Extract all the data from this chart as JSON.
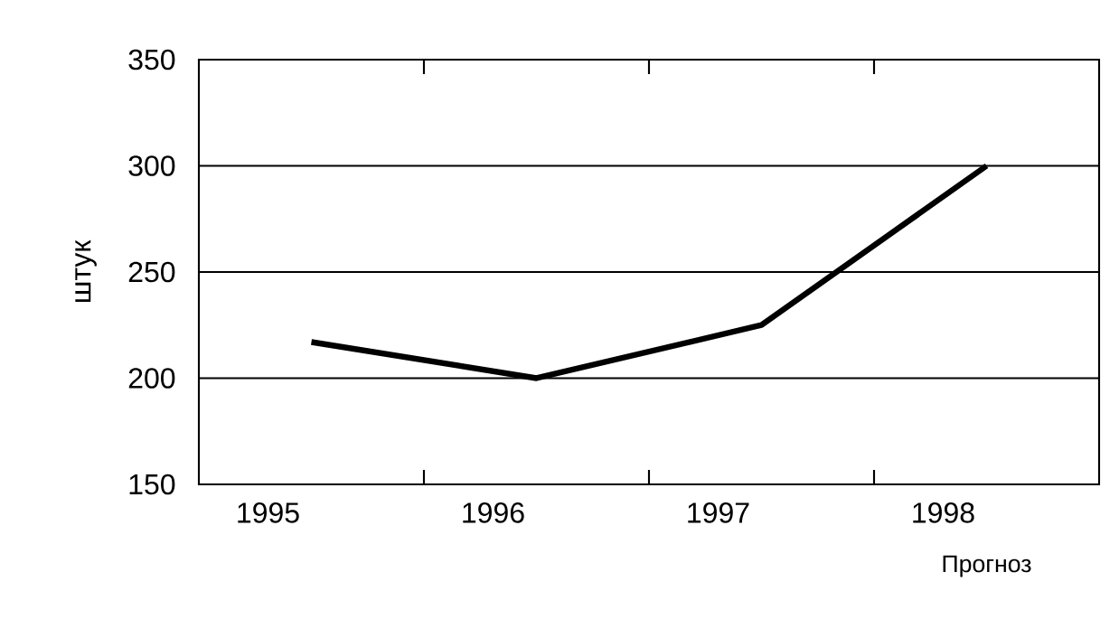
{
  "chart_data": {
    "type": "line",
    "ylabel": "штук",
    "categories": [
      "1995",
      "1996",
      "1997",
      "1998"
    ],
    "series": [
      {
        "color": "#000000",
        "values": [
          217,
          200,
          225,
          300
        ]
      }
    ],
    "ylim": [
      150,
      350
    ],
    "yticks": [
      150,
      200,
      250,
      300,
      350
    ],
    "grid": "y",
    "annotations": [
      "Прогноз"
    ]
  }
}
